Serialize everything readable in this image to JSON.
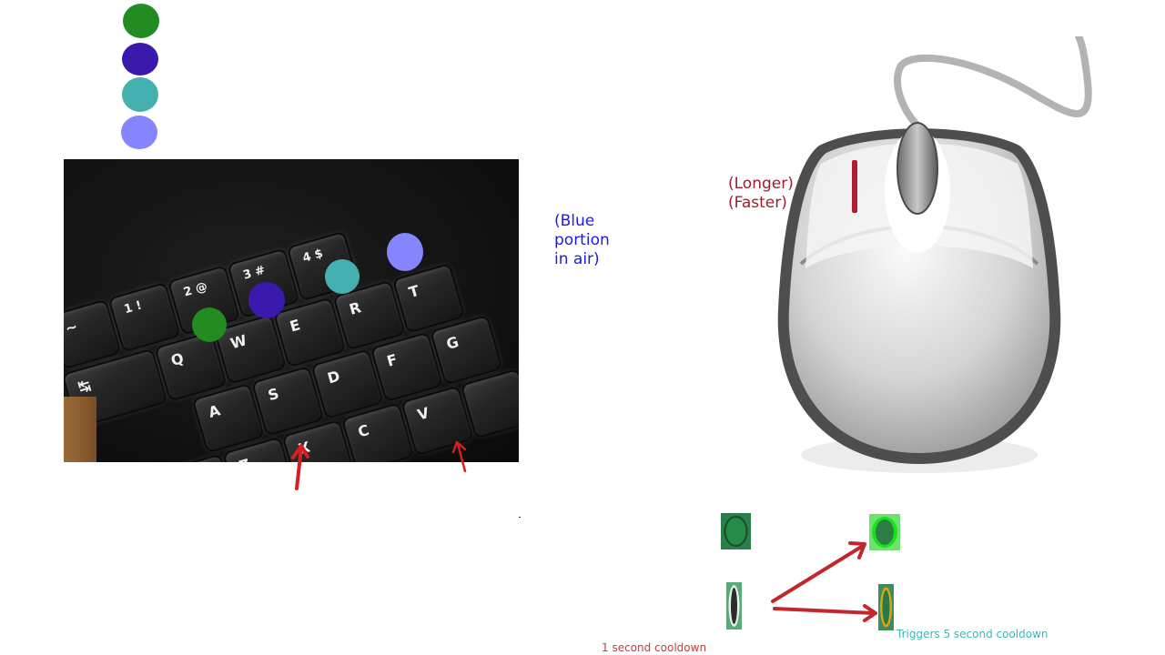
{
  "legend": {
    "swatches": [
      {
        "name": "green",
        "color": "#228b22"
      },
      {
        "name": "indigo",
        "color": "#3a1aad"
      },
      {
        "name": "teal",
        "color": "#44b0b0"
      },
      {
        "name": "periwinkle",
        "color": "#8585ff"
      }
    ]
  },
  "keyboard": {
    "key_labels": {
      "tilde": "~",
      "one": "1 !",
      "two": "2 @",
      "three": "3 #",
      "four": "4 $",
      "q": "Q",
      "w": "W",
      "e": "E",
      "r": "R",
      "t": "T",
      "tab": "↹",
      "a": "A",
      "s": "S",
      "d": "D",
      "f": "F",
      "g": "G",
      "shift": "⇧",
      "z": "Z",
      "x": "X",
      "c": "C",
      "v": "V"
    },
    "markers": [
      {
        "key": "Q",
        "color": "#228b22"
      },
      {
        "key": "W",
        "color": "#3a1aad"
      },
      {
        "key": "E",
        "color": "#44b0b0"
      },
      {
        "key": "R",
        "color": "#8585ff"
      }
    ]
  },
  "annotations": {
    "blue_note": "(Blue\nportion\nin air)",
    "red_note": "(Longer)\n(Faster)",
    "cooldown_short": "1 second cooldown",
    "cooldown_long": "Triggers 5 second cooldown"
  },
  "colors": {
    "arrow_red": "#d42020",
    "arrow_dark_red": "#c0282e",
    "note_blue": "#1b1be6",
    "note_red": "#9b1f30",
    "caption_red": "#c23b3b",
    "caption_teal": "#3fb6b6"
  },
  "icons": {
    "mouse": "computer-mouse-icon",
    "cooldown_idle": "green-oval-icon",
    "cooldown_active": "bright-green-oval-icon",
    "cooldown_narrow": "narrow-oval-icon",
    "cooldown_narrow_gold": "narrow-gold-oval-icon"
  }
}
